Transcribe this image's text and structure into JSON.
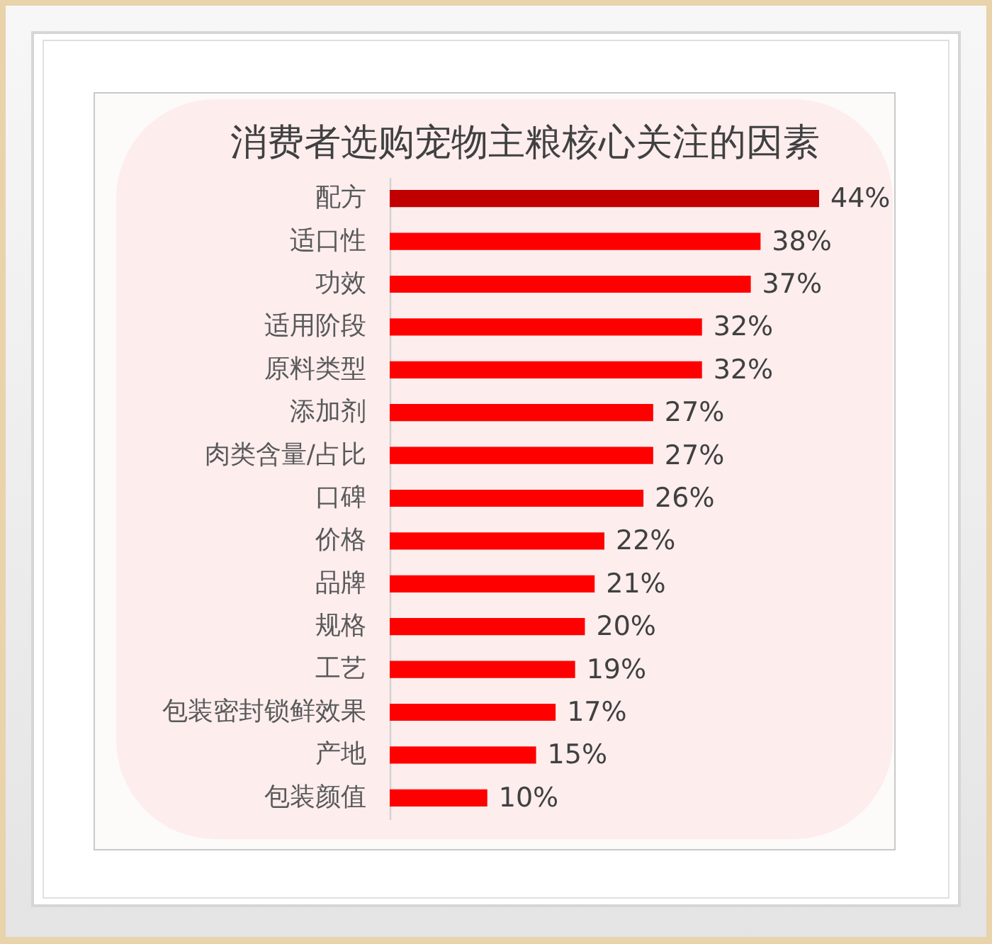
{
  "chart_data": {
    "type": "bar",
    "orientation": "horizontal",
    "title": "消费者选购宠物主粮核心关注的因素",
    "categories": [
      "配方",
      "适口性",
      "功效",
      "适用阶段",
      "原料类型",
      "添加剂",
      "肉类含量/占比",
      "口碑",
      "价格",
      "品牌",
      "规格",
      "工艺",
      "包装密封锁鲜效果",
      "产地",
      "包装颜值"
    ],
    "values": [
      44,
      38,
      37,
      32,
      32,
      27,
      27,
      26,
      22,
      21,
      20,
      19,
      17,
      15,
      10
    ],
    "value_labels": [
      "44%",
      "38%",
      "37%",
      "32%",
      "32%",
      "27%",
      "27%",
      "26%",
      "22%",
      "21%",
      "20%",
      "19%",
      "17%",
      "15%",
      "10%"
    ],
    "colors": [
      "#c00000",
      "#ff0000",
      "#ff0000",
      "#ff0000",
      "#ff0000",
      "#ff0000",
      "#ff0000",
      "#ff0000",
      "#ff0000",
      "#ff0000",
      "#ff0000",
      "#ff0000",
      "#ff0000",
      "#ff0000",
      "#ff0000"
    ],
    "tick_labels": "y"
  }
}
